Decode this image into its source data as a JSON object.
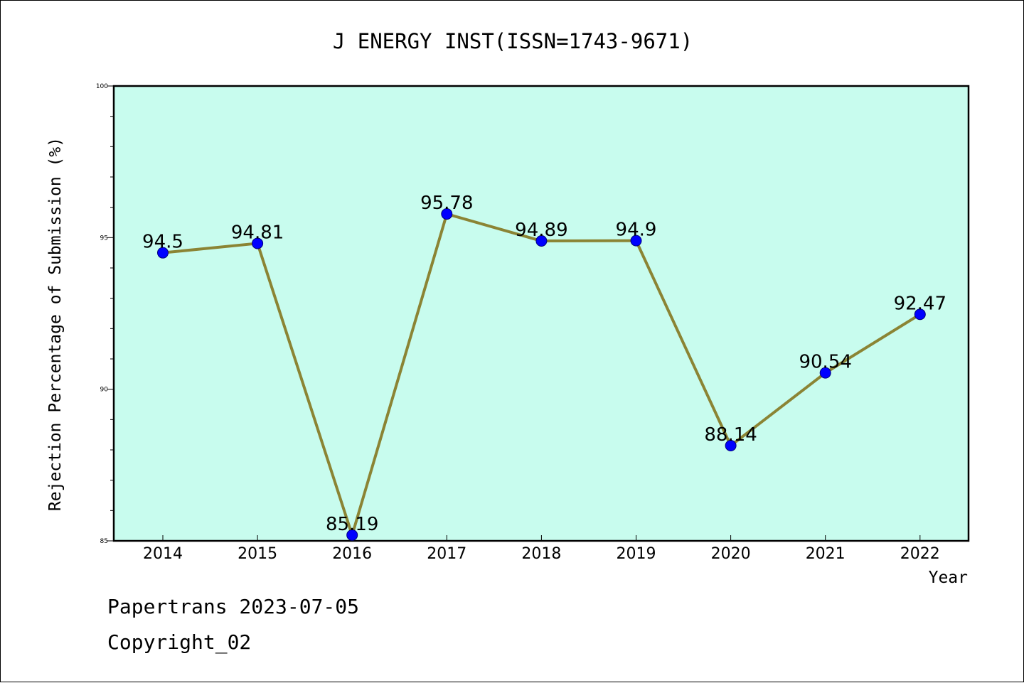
{
  "chart_data": {
    "type": "line",
    "title": "J ENERGY INST(ISSN=1743-9671)",
    "xlabel": "Year",
    "ylabel": "Rejection Percentage of Submission (%)",
    "categories": [
      "2014",
      "2015",
      "2016",
      "2017",
      "2018",
      "2019",
      "2020",
      "2021",
      "2022"
    ],
    "values": [
      94.5,
      94.81,
      85.19,
      95.78,
      94.89,
      94.9,
      88.14,
      90.54,
      92.47
    ],
    "value_labels": [
      "94.5",
      "94.81",
      "85.19",
      "95.78",
      "94.89",
      "94.9",
      "88.14",
      "90.54",
      "92.47"
    ],
    "ylim": [
      85,
      100
    ],
    "yticks": [
      85,
      90,
      95,
      100
    ],
    "ytick_labels": [
      "85",
      "90",
      "95",
      "100"
    ],
    "y_minor_step": 1,
    "grid": false,
    "legend": "none"
  },
  "colors": {
    "plot_background": "#c8fcee",
    "line": "#8b8434",
    "marker": "#0000ff",
    "frame": "#000000",
    "text": "#000000"
  },
  "footer": {
    "line1": "Papertrans 2023-07-05",
    "line2": "Copyright_02"
  }
}
